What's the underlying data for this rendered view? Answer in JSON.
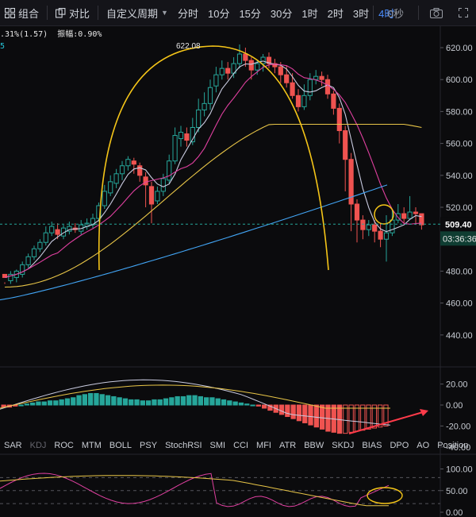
{
  "toolbar": {
    "combo_label": "组合",
    "compare_label": "对比",
    "custom_period_label": "自定义周期",
    "intervals": [
      "分时",
      "10分",
      "15分",
      "30分",
      "1时",
      "2时",
      "3时",
      "4时"
    ],
    "active_interval": "4时",
    "timer": "0秒"
  },
  "info": {
    "change": ".31%(1.57)",
    "amplitude_label": "振幅:",
    "amplitude_value": "0.90%",
    "line2": "5"
  },
  "price_axis": {
    "ticks": [
      "620.00",
      "600.00",
      "580.00",
      "560.00",
      "540.00",
      "520.00",
      "500.00",
      "480.00",
      "460.00",
      "440.00"
    ],
    "current_price": "509.40",
    "countdown": "03:36:36"
  },
  "annotation": {
    "high_label": "622.08"
  },
  "macd_axis": {
    "ticks": [
      "20.00",
      "0.00",
      "-20.00",
      "-40.00"
    ]
  },
  "indicator_tabs": [
    "SAR",
    "KDJ",
    "ROC",
    "MTM",
    "BOLL",
    "PSY",
    "StochRSI",
    "SMI",
    "CCI",
    "MFI",
    "ATR",
    "BBW",
    "SKDJ",
    "BIAS",
    "DPO",
    "AO",
    "Position"
  ],
  "dim_tab": "KDJ",
  "osc_axis": {
    "ticks": [
      "100.00",
      "50.00",
      "0.00"
    ]
  },
  "colors": {
    "up": "#26a69a",
    "down": "#ef5350",
    "ma_fast": "#c9cbe0",
    "ma_mid": "#e040a0",
    "ma_slow": "#e8c547",
    "ma_long": "#42a5f5",
    "accent": "#4a8dff",
    "annotation": "#f5c518"
  }
}
